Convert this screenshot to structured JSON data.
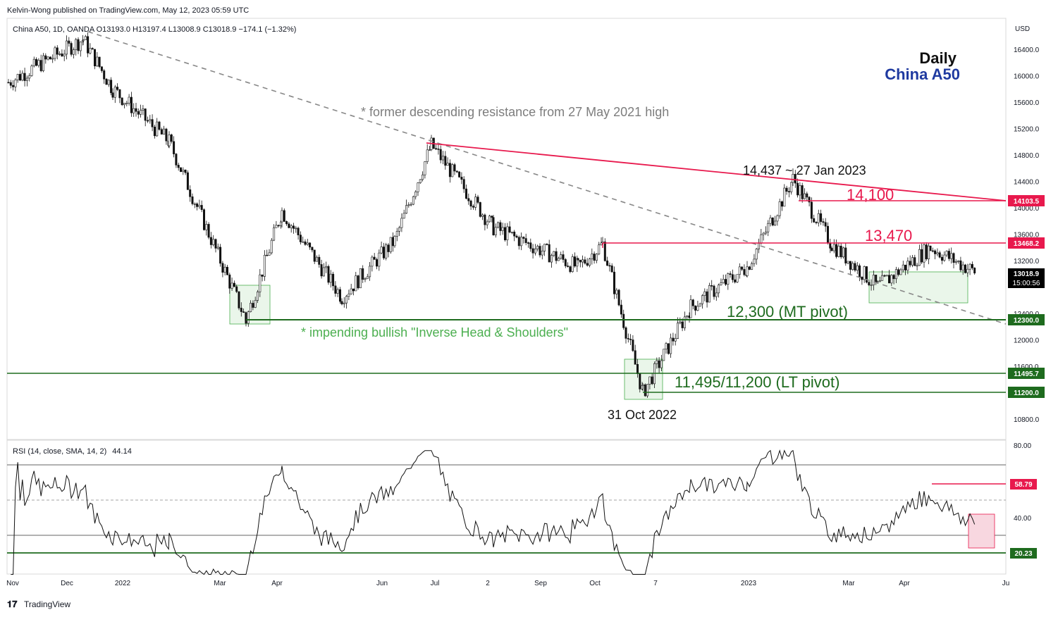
{
  "header": {
    "publisher": "Kelvin-Wong published on TradingView.com, May 12, 2023 05:59 UTC",
    "symbol_line": "China A50, 1D, OANDA  O13193.0  H13197.4  L13008.9  C13018.9  −174.1 (−1.32%)",
    "currency": "USD"
  },
  "title": {
    "timeframe": "Daily",
    "instrument": "China A50"
  },
  "annotations": {
    "former_resistance": "* former descending resistance from 27 May 2021 high",
    "high_label": "14,437 ~ 27 Jan 2023",
    "level_14100": "14,100",
    "level_13470": "13,470",
    "mt_pivot": "12,300 (MT pivot)",
    "ihs": "* impending bullish \"Inverse Head & Shoulders\"",
    "lt_pivot": "11,495/11,200 (LT pivot)",
    "low_date": "31 Oct 2022"
  },
  "price_axis": {
    "ticks": [
      "16400.0",
      "16000.0",
      "15600.0",
      "15200.0",
      "14800.0",
      "14400.0",
      "14000.0",
      "13600.0",
      "13200.0",
      "12400.0",
      "12000.0",
      "11600.0",
      "10800.0"
    ],
    "tags": [
      {
        "text": "14103.5",
        "color": "#e8194d"
      },
      {
        "text": "13468.2",
        "color": "#e8194d"
      },
      {
        "text": "13018.9",
        "sub": "15:00:56",
        "color": "#000000"
      },
      {
        "text": "12300.0",
        "color": "#1e6b1e"
      },
      {
        "text": "11495.7",
        "color": "#1e6b1e"
      },
      {
        "text": "11200.0",
        "color": "#1e6b1e"
      }
    ]
  },
  "time_axis": {
    "labels": [
      "Nov",
      "Dec",
      "2022",
      "Mar",
      "Apr",
      "Jun",
      "Jul",
      "2",
      "Sep",
      "Oct",
      "7",
      "2023",
      "Mar",
      "Apr",
      "Ju"
    ]
  },
  "rsi": {
    "label": "RSI (14, close, SMA, 14, 2)",
    "value": "44.14",
    "ticks": [
      "80.00",
      "40.00"
    ],
    "tags": [
      {
        "text": "58.79",
        "color": "#e8194d"
      },
      {
        "text": "20.23",
        "color": "#1e6b1e"
      }
    ]
  },
  "footer": {
    "brand": "TradingView"
  },
  "chart_data": {
    "type": "candlestick",
    "title": "China A50",
    "ylabel": "USD",
    "ylim": [
      10600,
      16800
    ],
    "levels": [
      {
        "name": "14,100",
        "value": 14103.5
      },
      {
        "name": "13,470",
        "value": 13468.2
      },
      {
        "name": "12,300 (MT pivot)",
        "value": 12300.0
      },
      {
        "name": "11,495.7",
        "value": 11495.7
      },
      {
        "name": "11,200",
        "value": 11200.0
      }
    ],
    "last_close": 13018.9,
    "swing_points": [
      {
        "date": "Oct 2021",
        "close": 15900
      },
      {
        "date": "Dec 2021",
        "close": 16550
      },
      {
        "date": "Jan 2022",
        "close": 15800
      },
      {
        "date": "Feb 2022",
        "close": 15000
      },
      {
        "date": "Mar 2022",
        "close": 12300
      },
      {
        "date": "Apr 2022",
        "close": 13950
      },
      {
        "date": "Apr 2022",
        "close": 12650
      },
      {
        "date": "Jun 2022",
        "close": 13500
      },
      {
        "date": "Jul 2022",
        "close": 14950
      },
      {
        "date": "Aug 2022",
        "close": 13700
      },
      {
        "date": "Sep 2022",
        "close": 13100
      },
      {
        "date": "Oct 2022",
        "close": 13450
      },
      {
        "date": "31 Oct 2022",
        "close": 11200
      },
      {
        "date": "Nov 2022",
        "close": 12500
      },
      {
        "date": "Dec 2022",
        "close": 13100
      },
      {
        "date": "27 Jan 2023",
        "close": 14437
      },
      {
        "date": "Feb 2023",
        "close": 13450
      },
      {
        "date": "Mar 2023",
        "close": 12800
      },
      {
        "date": "Apr 2023",
        "close": 13400
      },
      {
        "date": "May 2023",
        "close": 13018.9
      }
    ],
    "rsi": {
      "period": 14,
      "ylim": [
        15,
        82
      ],
      "levels": [
        70,
        50,
        30,
        20.23,
        58.79
      ],
      "current": 44.14
    }
  }
}
